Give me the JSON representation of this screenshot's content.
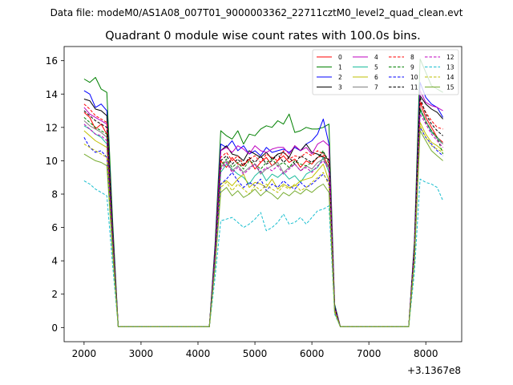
{
  "suptitle": "Data file: modeM0/AS1A08_007T01_9000003362_22711cztM0_level2_quad_clean.evt",
  "chart_data": {
    "type": "line",
    "title": "Quadrant 0 module wise count rates with 100.0s bins.",
    "xlabel": "",
    "ylabel": "",
    "x_offset_label": "+3.1367e8",
    "xlim": [
      1650,
      8630
    ],
    "ylim": [
      -0.85,
      16.85
    ],
    "xticks": [
      2000,
      3000,
      4000,
      5000,
      6000,
      7000,
      8000
    ],
    "yticks": [
      0,
      2,
      4,
      6,
      8,
      10,
      12,
      14,
      16
    ],
    "grid": false,
    "legend_placement": "top-right",
    "legend_columns": 4,
    "x": [
      2000,
      2100,
      2200,
      2300,
      2400,
      2500,
      2600,
      2700,
      2800,
      2900,
      3000,
      3100,
      3200,
      3300,
      3400,
      3500,
      3600,
      3700,
      3800,
      3900,
      4000,
      4100,
      4200,
      4300,
      4400,
      4500,
      4600,
      4700,
      4800,
      4900,
      5000,
      5100,
      5200,
      5300,
      5400,
      5500,
      5600,
      5700,
      5800,
      5900,
      6000,
      6100,
      6200,
      6300,
      6400,
      6500,
      6600,
      6700,
      6800,
      6900,
      7000,
      7100,
      7200,
      7300,
      7400,
      7500,
      7600,
      7700,
      7800,
      7900,
      8000,
      8100,
      8200,
      8300
    ],
    "series": [
      {
        "name": "0",
        "color": "#ff0000",
        "dash": "solid",
        "values": [
          12.9,
          12.6,
          11.9,
          12.2,
          11.6,
          5.2,
          0.05,
          0.05,
          0.05,
          0.05,
          0.05,
          0.05,
          0.05,
          0.05,
          0.05,
          0.05,
          0.05,
          0.05,
          0.05,
          0.05,
          0.05,
          0.05,
          0.05,
          4.2,
          10.0,
          9.6,
          10.2,
          9.8,
          9.7,
          10.1,
          9.5,
          9.9,
          10.2,
          9.7,
          10.0,
          10.3,
          9.9,
          10.1,
          9.6,
          10.0,
          9.8,
          10.2,
          10.3,
          9.6,
          1.2,
          0.05,
          0.05,
          0.05,
          0.05,
          0.05,
          0.05,
          0.05,
          0.05,
          0.05,
          0.05,
          0.05,
          0.05,
          0.05,
          4.8,
          13.5,
          12.6,
          12.0,
          11.4,
          11.1
        ]
      },
      {
        "name": "1",
        "color": "#008000",
        "dash": "solid",
        "values": [
          14.9,
          14.7,
          15.0,
          14.3,
          14.1,
          6.5,
          0.05,
          0.05,
          0.05,
          0.05,
          0.05,
          0.05,
          0.05,
          0.05,
          0.05,
          0.05,
          0.05,
          0.05,
          0.05,
          0.05,
          0.05,
          0.05,
          0.05,
          5.0,
          11.8,
          11.5,
          11.3,
          11.8,
          11.0,
          11.6,
          11.5,
          11.9,
          12.1,
          12.0,
          12.4,
          12.2,
          12.8,
          11.7,
          11.8,
          12.0,
          11.9,
          11.9,
          12.0,
          12.2,
          1.4,
          0.05,
          0.05,
          0.05,
          0.05,
          0.05,
          0.05,
          0.05,
          0.05,
          0.05,
          0.05,
          0.05,
          0.05,
          0.05,
          5.2,
          16.1,
          15.3,
          14.5,
          14.3,
          14.1
        ]
      },
      {
        "name": "2",
        "color": "#0000ff",
        "dash": "solid",
        "values": [
          14.2,
          14.0,
          13.2,
          13.4,
          13.0,
          6.0,
          0.05,
          0.05,
          0.05,
          0.05,
          0.05,
          0.05,
          0.05,
          0.05,
          0.05,
          0.05,
          0.05,
          0.05,
          0.05,
          0.05,
          0.05,
          0.05,
          0.05,
          4.8,
          11.0,
          10.8,
          11.2,
          10.6,
          10.9,
          10.4,
          10.6,
          10.3,
          10.8,
          10.5,
          10.6,
          10.7,
          10.5,
          10.8,
          10.6,
          11.0,
          11.2,
          11.6,
          12.5,
          11.0,
          1.3,
          0.05,
          0.05,
          0.05,
          0.05,
          0.05,
          0.05,
          0.05,
          0.05,
          0.05,
          0.05,
          0.05,
          0.05,
          0.05,
          5.0,
          14.7,
          13.8,
          13.4,
          13.2,
          12.6
        ]
      },
      {
        "name": "3",
        "color": "#000000",
        "dash": "solid",
        "values": [
          13.7,
          13.6,
          13.1,
          13.0,
          12.7,
          5.8,
          0.05,
          0.05,
          0.05,
          0.05,
          0.05,
          0.05,
          0.05,
          0.05,
          0.05,
          0.05,
          0.05,
          0.05,
          0.05,
          0.05,
          0.05,
          0.05,
          0.05,
          4.6,
          10.6,
          10.9,
          10.4,
          10.3,
          10.0,
          10.6,
          10.4,
          10.2,
          10.5,
          10.1,
          10.4,
          10.5,
          10.2,
          10.9,
          10.6,
          11.0,
          10.5,
          10.4,
          10.2,
          10.1,
          1.2,
          0.05,
          0.05,
          0.05,
          0.05,
          0.05,
          0.05,
          0.05,
          0.05,
          0.05,
          0.05,
          0.05,
          0.05,
          0.05,
          4.9,
          13.9,
          13.4,
          13.1,
          12.9,
          12.5
        ]
      },
      {
        "name": "4",
        "color": "#bf00bf",
        "dash": "solid",
        "values": [
          13.2,
          12.8,
          12.6,
          12.4,
          12.2,
          5.6,
          0.05,
          0.05,
          0.05,
          0.05,
          0.05,
          0.05,
          0.05,
          0.05,
          0.05,
          0.05,
          0.05,
          0.05,
          0.05,
          0.05,
          0.05,
          0.05,
          0.05,
          4.5,
          10.6,
          10.8,
          10.5,
          10.9,
          10.7,
          10.4,
          10.9,
          10.6,
          10.5,
          10.7,
          10.8,
          10.8,
          10.4,
          10.9,
          10.6,
          10.8,
          10.4,
          11.0,
          11.2,
          10.9,
          1.2,
          0.05,
          0.05,
          0.05,
          0.05,
          0.05,
          0.05,
          0.05,
          0.05,
          0.05,
          0.05,
          0.05,
          0.05,
          0.05,
          4.8,
          14.2,
          13.5,
          13.3,
          13.2,
          13.0
        ]
      },
      {
        "name": "5",
        "color": "#1abc9c",
        "dash": "solid",
        "values": [
          12.1,
          11.9,
          11.6,
          11.4,
          11.0,
          5.2,
          0.05,
          0.05,
          0.05,
          0.05,
          0.05,
          0.05,
          0.05,
          0.05,
          0.05,
          0.05,
          0.05,
          0.05,
          0.05,
          0.05,
          0.05,
          0.05,
          0.05,
          4.1,
          9.3,
          9.8,
          9.5,
          9.2,
          9.0,
          8.6,
          9.1,
          9.4,
          8.8,
          9.2,
          9.0,
          9.3,
          8.9,
          9.1,
          8.7,
          9.2,
          9.4,
          9.6,
          10.2,
          9.3,
          1.1,
          0.05,
          0.05,
          0.05,
          0.05,
          0.05,
          0.05,
          0.05,
          0.05,
          0.05,
          0.05,
          0.05,
          0.05,
          0.05,
          4.5,
          13.0,
          12.4,
          11.7,
          11.4,
          11.0
        ]
      },
      {
        "name": "6",
        "color": "#bfbf00",
        "dash": "solid",
        "values": [
          11.8,
          11.5,
          11.2,
          11.0,
          10.8,
          5.0,
          0.05,
          0.05,
          0.05,
          0.05,
          0.05,
          0.05,
          0.05,
          0.05,
          0.05,
          0.05,
          0.05,
          0.05,
          0.05,
          0.05,
          0.05,
          0.05,
          0.05,
          3.8,
          8.6,
          8.8,
          8.5,
          8.9,
          9.2,
          8.4,
          8.7,
          8.6,
          8.4,
          8.9,
          8.3,
          8.6,
          8.4,
          8.5,
          8.8,
          8.9,
          9.0,
          9.4,
          9.8,
          8.8,
          1.0,
          0.05,
          0.05,
          0.05,
          0.05,
          0.05,
          0.05,
          0.05,
          0.05,
          0.05,
          0.05,
          0.05,
          0.05,
          0.05,
          4.3,
          12.3,
          11.6,
          11.1,
          10.9,
          10.6
        ]
      },
      {
        "name": "7",
        "color": "#808080",
        "dash": "solid",
        "values": [
          12.4,
          12.1,
          11.9,
          11.7,
          11.4,
          5.3,
          0.05,
          0.05,
          0.05,
          0.05,
          0.05,
          0.05,
          0.05,
          0.05,
          0.05,
          0.05,
          0.05,
          0.05,
          0.05,
          0.05,
          0.05,
          0.05,
          0.05,
          4.3,
          9.6,
          10.0,
          9.4,
          9.7,
          9.3,
          9.6,
          9.8,
          9.2,
          9.5,
          9.7,
          9.9,
          9.3,
          9.6,
          9.8,
          9.4,
          9.7,
          9.5,
          9.9,
          10.1,
          9.6,
          1.1,
          0.05,
          0.05,
          0.05,
          0.05,
          0.05,
          0.05,
          0.05,
          0.05,
          0.05,
          0.05,
          0.05,
          0.05,
          0.05,
          4.6,
          13.2,
          12.4,
          11.8,
          11.3,
          11.0
        ]
      },
      {
        "name": "8",
        "color": "#ff0000",
        "dash": "dashed",
        "values": [
          13.4,
          13.1,
          12.7,
          12.5,
          12.3,
          5.5,
          0.05,
          0.05,
          0.05,
          0.05,
          0.05,
          0.05,
          0.05,
          0.05,
          0.05,
          0.05,
          0.05,
          0.05,
          0.05,
          0.05,
          0.05,
          0.05,
          0.05,
          4.5,
          10.2,
          10.5,
          10.0,
          10.3,
          9.8,
          10.1,
          10.3,
          9.9,
          10.4,
          10.2,
          10.0,
          10.6,
          10.1,
          10.3,
          10.2,
          10.5,
          10.3,
          10.6,
          10.4,
          10.0,
          1.2,
          0.05,
          0.05,
          0.05,
          0.05,
          0.05,
          0.05,
          0.05,
          0.05,
          0.05,
          0.05,
          0.05,
          0.05,
          0.05,
          4.7,
          13.6,
          12.9,
          12.4,
          12.0,
          11.9
        ]
      },
      {
        "name": "9",
        "color": "#008000",
        "dash": "dashed",
        "values": [
          12.6,
          12.3,
          12.0,
          11.8,
          11.6,
          5.3,
          0.05,
          0.05,
          0.05,
          0.05,
          0.05,
          0.05,
          0.05,
          0.05,
          0.05,
          0.05,
          0.05,
          0.05,
          0.05,
          0.05,
          0.05,
          0.05,
          0.05,
          4.3,
          9.7,
          10.1,
          9.6,
          9.9,
          9.5,
          10.0,
          9.8,
          9.5,
          9.9,
          10.1,
          9.7,
          9.9,
          9.6,
          10.0,
          9.8,
          9.7,
          9.9,
          10.2,
          10.6,
          9.8,
          1.1,
          0.05,
          0.05,
          0.05,
          0.05,
          0.05,
          0.05,
          0.05,
          0.05,
          0.05,
          0.05,
          0.05,
          0.05,
          0.05,
          4.6,
          13.1,
          12.3,
          11.8,
          11.4,
          10.4
        ]
      },
      {
        "name": "10",
        "color": "#0000ff",
        "dash": "dashed",
        "values": [
          11.4,
          10.8,
          10.5,
          10.6,
          10.2,
          4.8,
          0.05,
          0.05,
          0.05,
          0.05,
          0.05,
          0.05,
          0.05,
          0.05,
          0.05,
          0.05,
          0.05,
          0.05,
          0.05,
          0.05,
          0.05,
          0.05,
          0.05,
          3.9,
          8.6,
          8.9,
          9.3,
          8.8,
          8.4,
          8.7,
          8.5,
          8.9,
          8.2,
          8.6,
          8.4,
          8.8,
          8.5,
          8.3,
          8.7,
          8.4,
          8.6,
          8.9,
          9.2,
          8.7,
          1.0,
          0.05,
          0.05,
          0.05,
          0.05,
          0.05,
          0.05,
          0.05,
          0.05,
          0.05,
          0.05,
          0.05,
          0.05,
          0.05,
          4.2,
          12.0,
          11.4,
          11.0,
          10.6,
          10.3
        ]
      },
      {
        "name": "11",
        "color": "#000000",
        "dash": "dashed",
        "values": [
          13.0,
          12.7,
          12.4,
          12.2,
          12.0,
          5.4,
          0.05,
          0.05,
          0.05,
          0.05,
          0.05,
          0.05,
          0.05,
          0.05,
          0.05,
          0.05,
          0.05,
          0.05,
          0.05,
          0.05,
          0.05,
          0.05,
          0.05,
          4.4,
          10.0,
          10.3,
          9.8,
          10.1,
          9.7,
          10.2,
          9.9,
          10.3,
          9.8,
          10.0,
          10.4,
          9.9,
          10.2,
          9.8,
          10.3,
          10.1,
          9.9,
          10.2,
          10.5,
          10.0,
          1.2,
          0.05,
          0.05,
          0.05,
          0.05,
          0.05,
          0.05,
          0.05,
          0.05,
          0.05,
          0.05,
          0.05,
          0.05,
          0.05,
          4.7,
          13.8,
          12.8,
          12.2,
          11.8,
          11.5
        ]
      },
      {
        "name": "12",
        "color": "#bf00bf",
        "dash": "dashed",
        "values": [
          12.2,
          11.9,
          11.6,
          11.5,
          11.2,
          5.1,
          0.05,
          0.05,
          0.05,
          0.05,
          0.05,
          0.05,
          0.05,
          0.05,
          0.05,
          0.05,
          0.05,
          0.05,
          0.05,
          0.05,
          0.05,
          0.05,
          0.05,
          4.2,
          9.5,
          9.9,
          9.3,
          9.6,
          9.2,
          9.5,
          9.8,
          9.3,
          9.6,
          9.4,
          9.7,
          9.2,
          9.5,
          9.8,
          9.4,
          9.6,
          9.3,
          9.7,
          10.0,
          9.5,
          1.1,
          0.05,
          0.05,
          0.05,
          0.05,
          0.05,
          0.05,
          0.05,
          0.05,
          0.05,
          0.05,
          0.05,
          0.05,
          0.05,
          4.5,
          12.8,
          12.2,
          11.6,
          11.2,
          10.8
        ]
      },
      {
        "name": "13",
        "color": "#17becf",
        "dash": "dashed",
        "values": [
          8.8,
          8.6,
          8.3,
          8.1,
          7.9,
          3.8,
          0.05,
          0.05,
          0.05,
          0.05,
          0.05,
          0.05,
          0.05,
          0.05,
          0.05,
          0.05,
          0.05,
          0.05,
          0.05,
          0.05,
          0.05,
          0.05,
          0.05,
          3.0,
          6.4,
          6.5,
          6.6,
          6.3,
          6.0,
          6.2,
          6.5,
          6.9,
          5.8,
          6.0,
          6.3,
          6.8,
          6.2,
          6.3,
          6.6,
          6.2,
          6.6,
          7.0,
          7.1,
          7.3,
          0.8,
          0.05,
          0.05,
          0.05,
          0.05,
          0.05,
          0.05,
          0.05,
          0.05,
          0.05,
          0.05,
          0.05,
          0.05,
          0.05,
          3.3,
          8.9,
          8.7,
          8.6,
          8.4,
          7.6
        ]
      },
      {
        "name": "14",
        "color": "#bfbf00",
        "dash": "dashed",
        "values": [
          11.0,
          10.8,
          10.6,
          10.4,
          10.2,
          4.8,
          0.05,
          0.05,
          0.05,
          0.05,
          0.05,
          0.05,
          0.05,
          0.05,
          0.05,
          0.05,
          0.05,
          0.05,
          0.05,
          0.05,
          0.05,
          0.05,
          0.05,
          3.7,
          8.4,
          8.7,
          8.2,
          8.6,
          8.3,
          8.0,
          8.5,
          8.2,
          8.6,
          8.3,
          8.1,
          8.5,
          8.3,
          8.6,
          8.2,
          8.4,
          8.7,
          9.0,
          9.3,
          8.5,
          1.0,
          0.05,
          0.05,
          0.05,
          0.05,
          0.05,
          0.05,
          0.05,
          0.05,
          0.05,
          0.05,
          0.05,
          0.05,
          0.05,
          4.1,
          12.1,
          11.4,
          10.9,
          10.7,
          10.5
        ]
      },
      {
        "name": "15",
        "color": "#77ac30",
        "dash": "solid",
        "values": [
          10.4,
          10.2,
          10.0,
          9.9,
          9.7,
          4.5,
          0.05,
          0.05,
          0.05,
          0.05,
          0.05,
          0.05,
          0.05,
          0.05,
          0.05,
          0.05,
          0.05,
          0.05,
          0.05,
          0.05,
          0.05,
          0.05,
          0.05,
          3.6,
          8.1,
          8.4,
          7.9,
          8.2,
          7.8,
          8.0,
          8.3,
          7.9,
          8.2,
          8.0,
          7.7,
          8.1,
          7.9,
          8.2,
          8.0,
          8.3,
          8.1,
          8.4,
          8.6,
          8.1,
          0.9,
          0.05,
          0.05,
          0.05,
          0.05,
          0.05,
          0.05,
          0.05,
          0.05,
          0.05,
          0.05,
          0.05,
          0.05,
          0.05,
          3.9,
          11.8,
          11.2,
          10.6,
          10.3,
          10.0
        ]
      }
    ]
  }
}
